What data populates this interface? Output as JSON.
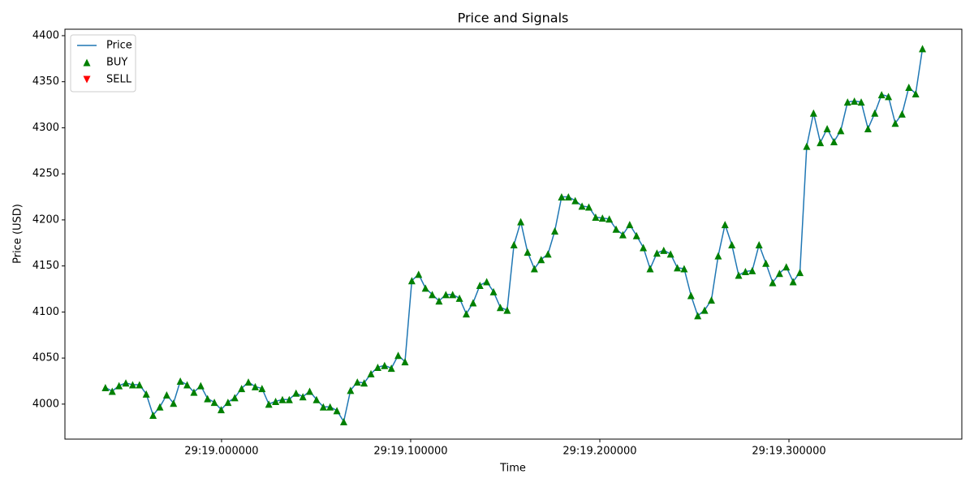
{
  "chart_data": {
    "type": "line",
    "title": "Price and Signals",
    "xlabel": "Time",
    "ylabel": "Price (USD)",
    "x": [
      18.9386,
      18.9422,
      18.9458,
      18.9494,
      18.953,
      18.9566,
      18.9602,
      18.9638,
      18.9674,
      18.971,
      18.9746,
      18.9782,
      18.9818,
      18.9854,
      18.989,
      18.9926,
      18.9962,
      18.9998,
      19.0034,
      19.007,
      19.0106,
      19.0142,
      19.0178,
      19.0214,
      19.025,
      19.0286,
      19.0322,
      19.0358,
      19.0394,
      19.043,
      19.0466,
      19.0502,
      19.0538,
      19.0574,
      19.061,
      19.0646,
      19.0682,
      19.0718,
      19.0754,
      19.079,
      19.0826,
      19.0862,
      19.0898,
      19.0934,
      19.097,
      19.1006,
      19.1042,
      19.1078,
      19.1114,
      19.115,
      19.1186,
      19.1222,
      19.1258,
      19.1294,
      19.133,
      19.1366,
      19.1402,
      19.1438,
      19.1474,
      19.151,
      19.1546,
      19.1582,
      19.1618,
      19.1654,
      19.169,
      19.1726,
      19.1762,
      19.1798,
      19.1834,
      19.187,
      19.1906,
      19.1942,
      19.1978,
      19.2014,
      19.205,
      19.2086,
      19.2122,
      19.2158,
      19.2194,
      19.223,
      19.2266,
      19.2302,
      19.2338,
      19.2374,
      19.241,
      19.2446,
      19.2482,
      19.2518,
      19.2554,
      19.259,
      19.2626,
      19.2662,
      19.2698,
      19.2734,
      19.277,
      19.2806,
      19.2842,
      19.2878,
      19.2914,
      19.295,
      19.2986,
      19.3022,
      19.3058,
      19.3094,
      19.313,
      19.3166,
      19.3202,
      19.3238,
      19.3274,
      19.331,
      19.3346,
      19.3382,
      19.3418,
      19.3454,
      19.349,
      19.3526,
      19.3562,
      19.3598,
      19.3634,
      19.367,
      19.3706
    ],
    "series": [
      {
        "name": "Price",
        "color": "#1f77b4",
        "values": [
          4018,
          4014,
          4020,
          4023,
          4021,
          4021,
          4011,
          3988,
          3997,
          4010,
          4001,
          4025,
          4021,
          4013,
          4020,
          4006,
          4002,
          3994,
          4002,
          4007,
          4017,
          4024,
          4019,
          4017,
          4000,
          4003,
          4005,
          4005,
          4012,
          4008,
          4014,
          4005,
          3997,
          3997,
          3993,
          3981,
          4015,
          4024,
          4023,
          4033,
          4040,
          4042,
          4039,
          4053,
          4046,
          4134,
          4141,
          4126,
          4119,
          4112,
          4119,
          4119,
          4115,
          4098,
          4110,
          4129,
          4133,
          4122,
          4105,
          4102,
          4173,
          4198,
          4165,
          4147,
          4157,
          4163,
          4188,
          4225,
          4225,
          4221,
          4215,
          4214,
          4203,
          4202,
          4201,
          4190,
          4184,
          4195,
          4183,
          4170,
          4147,
          4164,
          4167,
          4163,
          4148,
          4147,
          4118,
          4096,
          4102,
          4113,
          4161,
          4195,
          4173,
          4140,
          4144,
          4145,
          4173,
          4153,
          4132,
          4142,
          4149,
          4133,
          4143,
          4280,
          4316,
          4284,
          4299,
          4285,
          4297,
          4328,
          4329,
          4328,
          4299,
          4316,
          4336,
          4334,
          4305,
          4315,
          4344,
          4337,
          4386
        ]
      },
      {
        "name": "BUY",
        "color": "green",
        "marker": "^",
        "values": [
          4018,
          4014,
          4020,
          4023,
          4021,
          4021,
          4011,
          3988,
          3997,
          4010,
          4001,
          4025,
          4021,
          4013,
          4020,
          4006,
          4002,
          3994,
          4002,
          4007,
          4017,
          4024,
          4019,
          4017,
          4000,
          4003,
          4005,
          4005,
          4012,
          4008,
          4014,
          4005,
          3997,
          3997,
          3993,
          3981,
          4015,
          4024,
          4023,
          4033,
          4040,
          4042,
          4039,
          4053,
          4046,
          4134,
          4141,
          4126,
          4119,
          4112,
          4119,
          4119,
          4115,
          4098,
          4110,
          4129,
          4133,
          4122,
          4105,
          4102,
          4173,
          4198,
          4165,
          4147,
          4157,
          4163,
          4188,
          4225,
          4225,
          4221,
          4215,
          4214,
          4203,
          4202,
          4201,
          4190,
          4184,
          4195,
          4183,
          4170,
          4147,
          4164,
          4167,
          4163,
          4148,
          4147,
          4118,
          4096,
          4102,
          4113,
          4161,
          4195,
          4173,
          4140,
          4144,
          4145,
          4173,
          4153,
          4132,
          4142,
          4149,
          4133,
          4143,
          4280,
          4316,
          4284,
          4299,
          4285,
          4297,
          4328,
          4329,
          4328,
          4299,
          4316,
          4336,
          4334,
          4305,
          4315,
          4344,
          4337,
          4386
        ]
      },
      {
        "name": "SELL",
        "color": "red",
        "marker": "v",
        "values": [
          null,
          null,
          null,
          null,
          null,
          null,
          null,
          null,
          null,
          null,
          null,
          null,
          null,
          null,
          null,
          null,
          null,
          null,
          null,
          null,
          null,
          null,
          null,
          null,
          null,
          null,
          null,
          null,
          null,
          null,
          null,
          null,
          null,
          null,
          null,
          null,
          null,
          null,
          null,
          null,
          null,
          null,
          null,
          null,
          null,
          null,
          null,
          null,
          null,
          null,
          null,
          null,
          null,
          null,
          null,
          null,
          null,
          null,
          null,
          null,
          null,
          null,
          null,
          null,
          null,
          null,
          null,
          null,
          null,
          null,
          null,
          null,
          null,
          null,
          null,
          null,
          null,
          null,
          null,
          null,
          null,
          null,
          null,
          null,
          null,
          null,
          null,
          null,
          null,
          null,
          null,
          null,
          null,
          null,
          null,
          null,
          null,
          null,
          null,
          null,
          null,
          null,
          null,
          null,
          null,
          null,
          null,
          null,
          null,
          null,
          null,
          null,
          null,
          null,
          null,
          null,
          null,
          null,
          null,
          null,
          null
        ]
      }
    ],
    "xlim": [
      18.9172,
      19.3914
    ],
    "xticks": [
      {
        "value": 19.0,
        "label": "29:19.000000"
      },
      {
        "value": 19.1,
        "label": "29:19.100000"
      },
      {
        "value": 19.2,
        "label": "29:19.200000"
      },
      {
        "value": 19.3,
        "label": "29:19.300000"
      }
    ],
    "ylim": [
      3962,
      4407
    ],
    "yticks": [
      4000,
      4050,
      4100,
      4150,
      4200,
      4250,
      4300,
      4350,
      4400
    ],
    "legend": "upper left"
  }
}
